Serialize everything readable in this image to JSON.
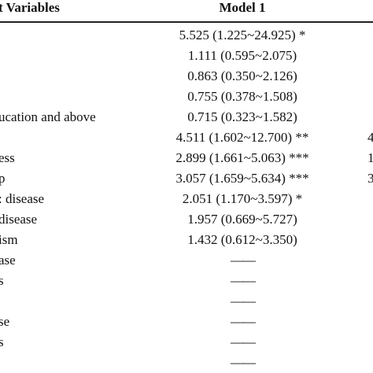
{
  "table": {
    "header": {
      "variable": "t Variables",
      "model1": "Model 1"
    },
    "rows": [
      {
        "model1": "5.525 (1.225~24.925) *"
      },
      {
        "model1": "1.111 (0.595~2.075)"
      },
      {
        "model1": "0.863 (0.350~2.126)"
      },
      {
        "model1": "0.755 (0.378~1.508)"
      },
      {
        "variable": "ucation and above",
        "model1": "0.715 (0.323~1.582)"
      },
      {
        "model1": "4.511 (1.602~12.700) **",
        "next": "4"
      },
      {
        "variable": "ess",
        "model1": "2.899 (1.661~5.063) ***",
        "next": "1"
      },
      {
        "variable": "p",
        "model1": "3.057 (1.659~5.634) ***",
        "next": "3"
      },
      {
        "variable": ": disease",
        "model1": "2.051 (1.170~3.597) *"
      },
      {
        "variable": "disease",
        "model1": "1.957 (0.669~5.727)"
      },
      {
        "variable": "ism",
        "model1": "1.432 (0.612~3.350)"
      },
      {
        "variable": "ase",
        "model1": "——"
      },
      {
        "variable": "s",
        "model1": "——"
      },
      {
        "model1": "——"
      },
      {
        "variable": "se",
        "model1": "——"
      },
      {
        "variable": "s",
        "model1": "——"
      },
      {
        "model1": "——"
      }
    ]
  }
}
